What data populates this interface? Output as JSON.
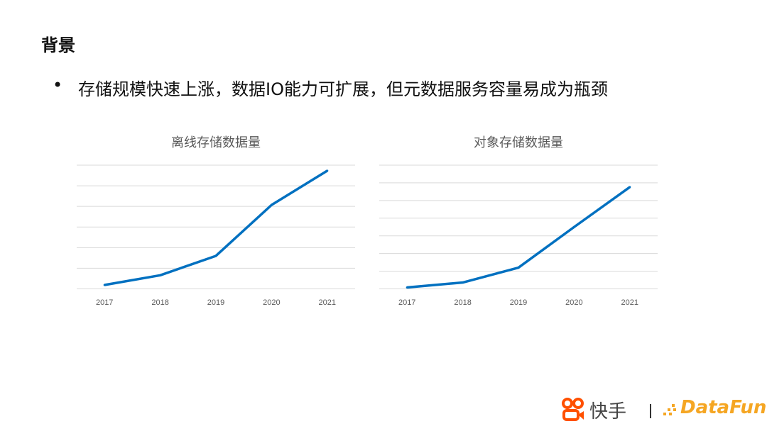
{
  "slide": {
    "title": "背景",
    "bullet": "存储规模快速上涨，数据IO能力可扩展，但元数据服务容量易成为瓶颈",
    "bullet_marker": "•"
  },
  "logos": {
    "kuaishou": "快手",
    "separator": "|",
    "datafun": "DataFun."
  },
  "colors": {
    "line": "#0070C0",
    "grid": "#D9D9D9",
    "kuaishou": "#FF5000",
    "datafun": "#F5A623"
  },
  "chart_data": [
    {
      "type": "line",
      "title": "离线存储数据量",
      "categories": [
        "2017",
        "2018",
        "2019",
        "2020",
        "2021"
      ],
      "values": [
        0.19,
        0.66,
        1.6,
        4.07,
        5.73
      ],
      "ylim": [
        0,
        6
      ],
      "grid": true,
      "y_tick_labels": false
    },
    {
      "type": "line",
      "title": "对象存储数据量",
      "categories": [
        "2017",
        "2018",
        "2019",
        "2020",
        "2021"
      ],
      "values": [
        0.08,
        0.36,
        1.2,
        3.5,
        5.76
      ],
      "ylim": [
        0,
        7
      ],
      "grid": true,
      "y_tick_labels": false
    }
  ]
}
